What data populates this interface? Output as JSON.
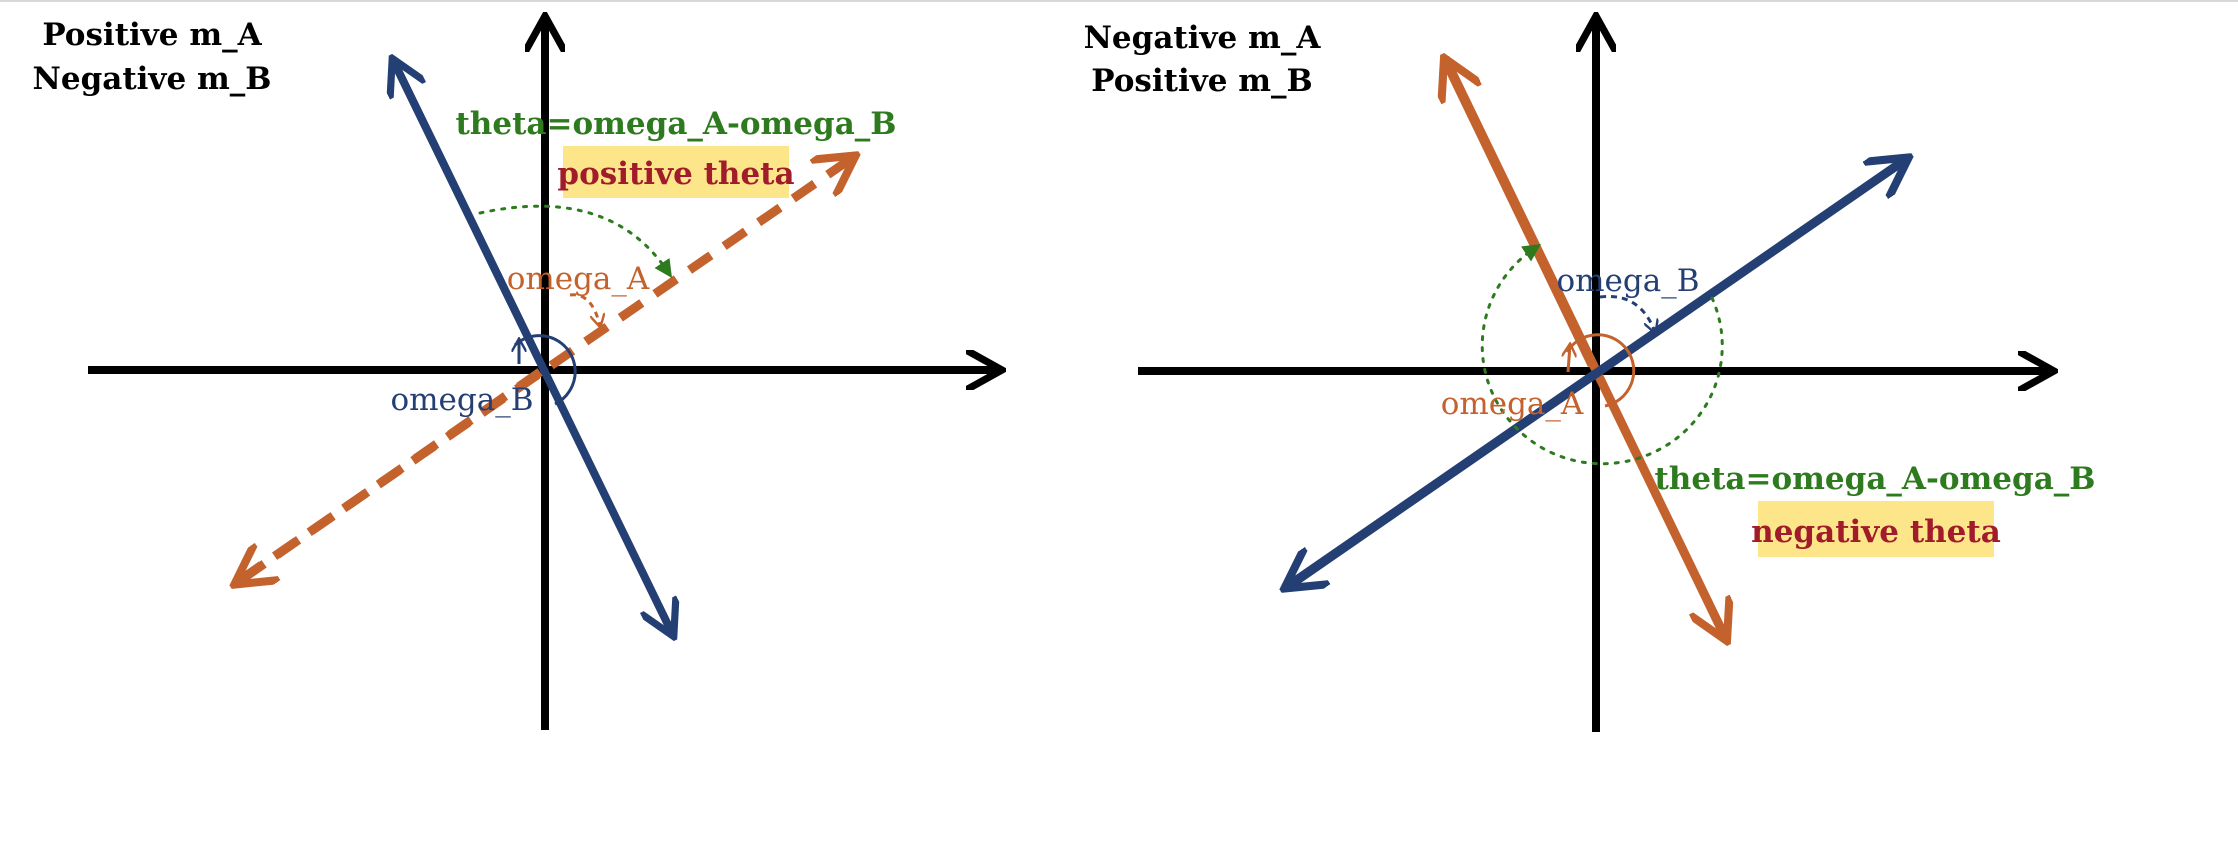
{
  "colors": {
    "axis": "#000000",
    "blue": "#243f73",
    "orange": "#c4622d",
    "green": "#2e7a1e",
    "theta_red": "#a01c2a",
    "highlight": "#fde68a"
  },
  "left_panel": {
    "title_line1": "Positive m_A",
    "title_line2": "Negative m_B",
    "theta_formula": "theta=omega_A-omega_B",
    "theta_sign": "positive theta",
    "omega_a_label": "omega_A",
    "omega_b_label": "omega_B"
  },
  "right_panel": {
    "title_line1": "Negative m_A",
    "title_line2": "Positive m_B",
    "theta_formula": "theta=omega_A-omega_B",
    "theta_sign": "negative theta",
    "omega_a_label": "omega_A",
    "omega_b_label": "omega_B"
  }
}
